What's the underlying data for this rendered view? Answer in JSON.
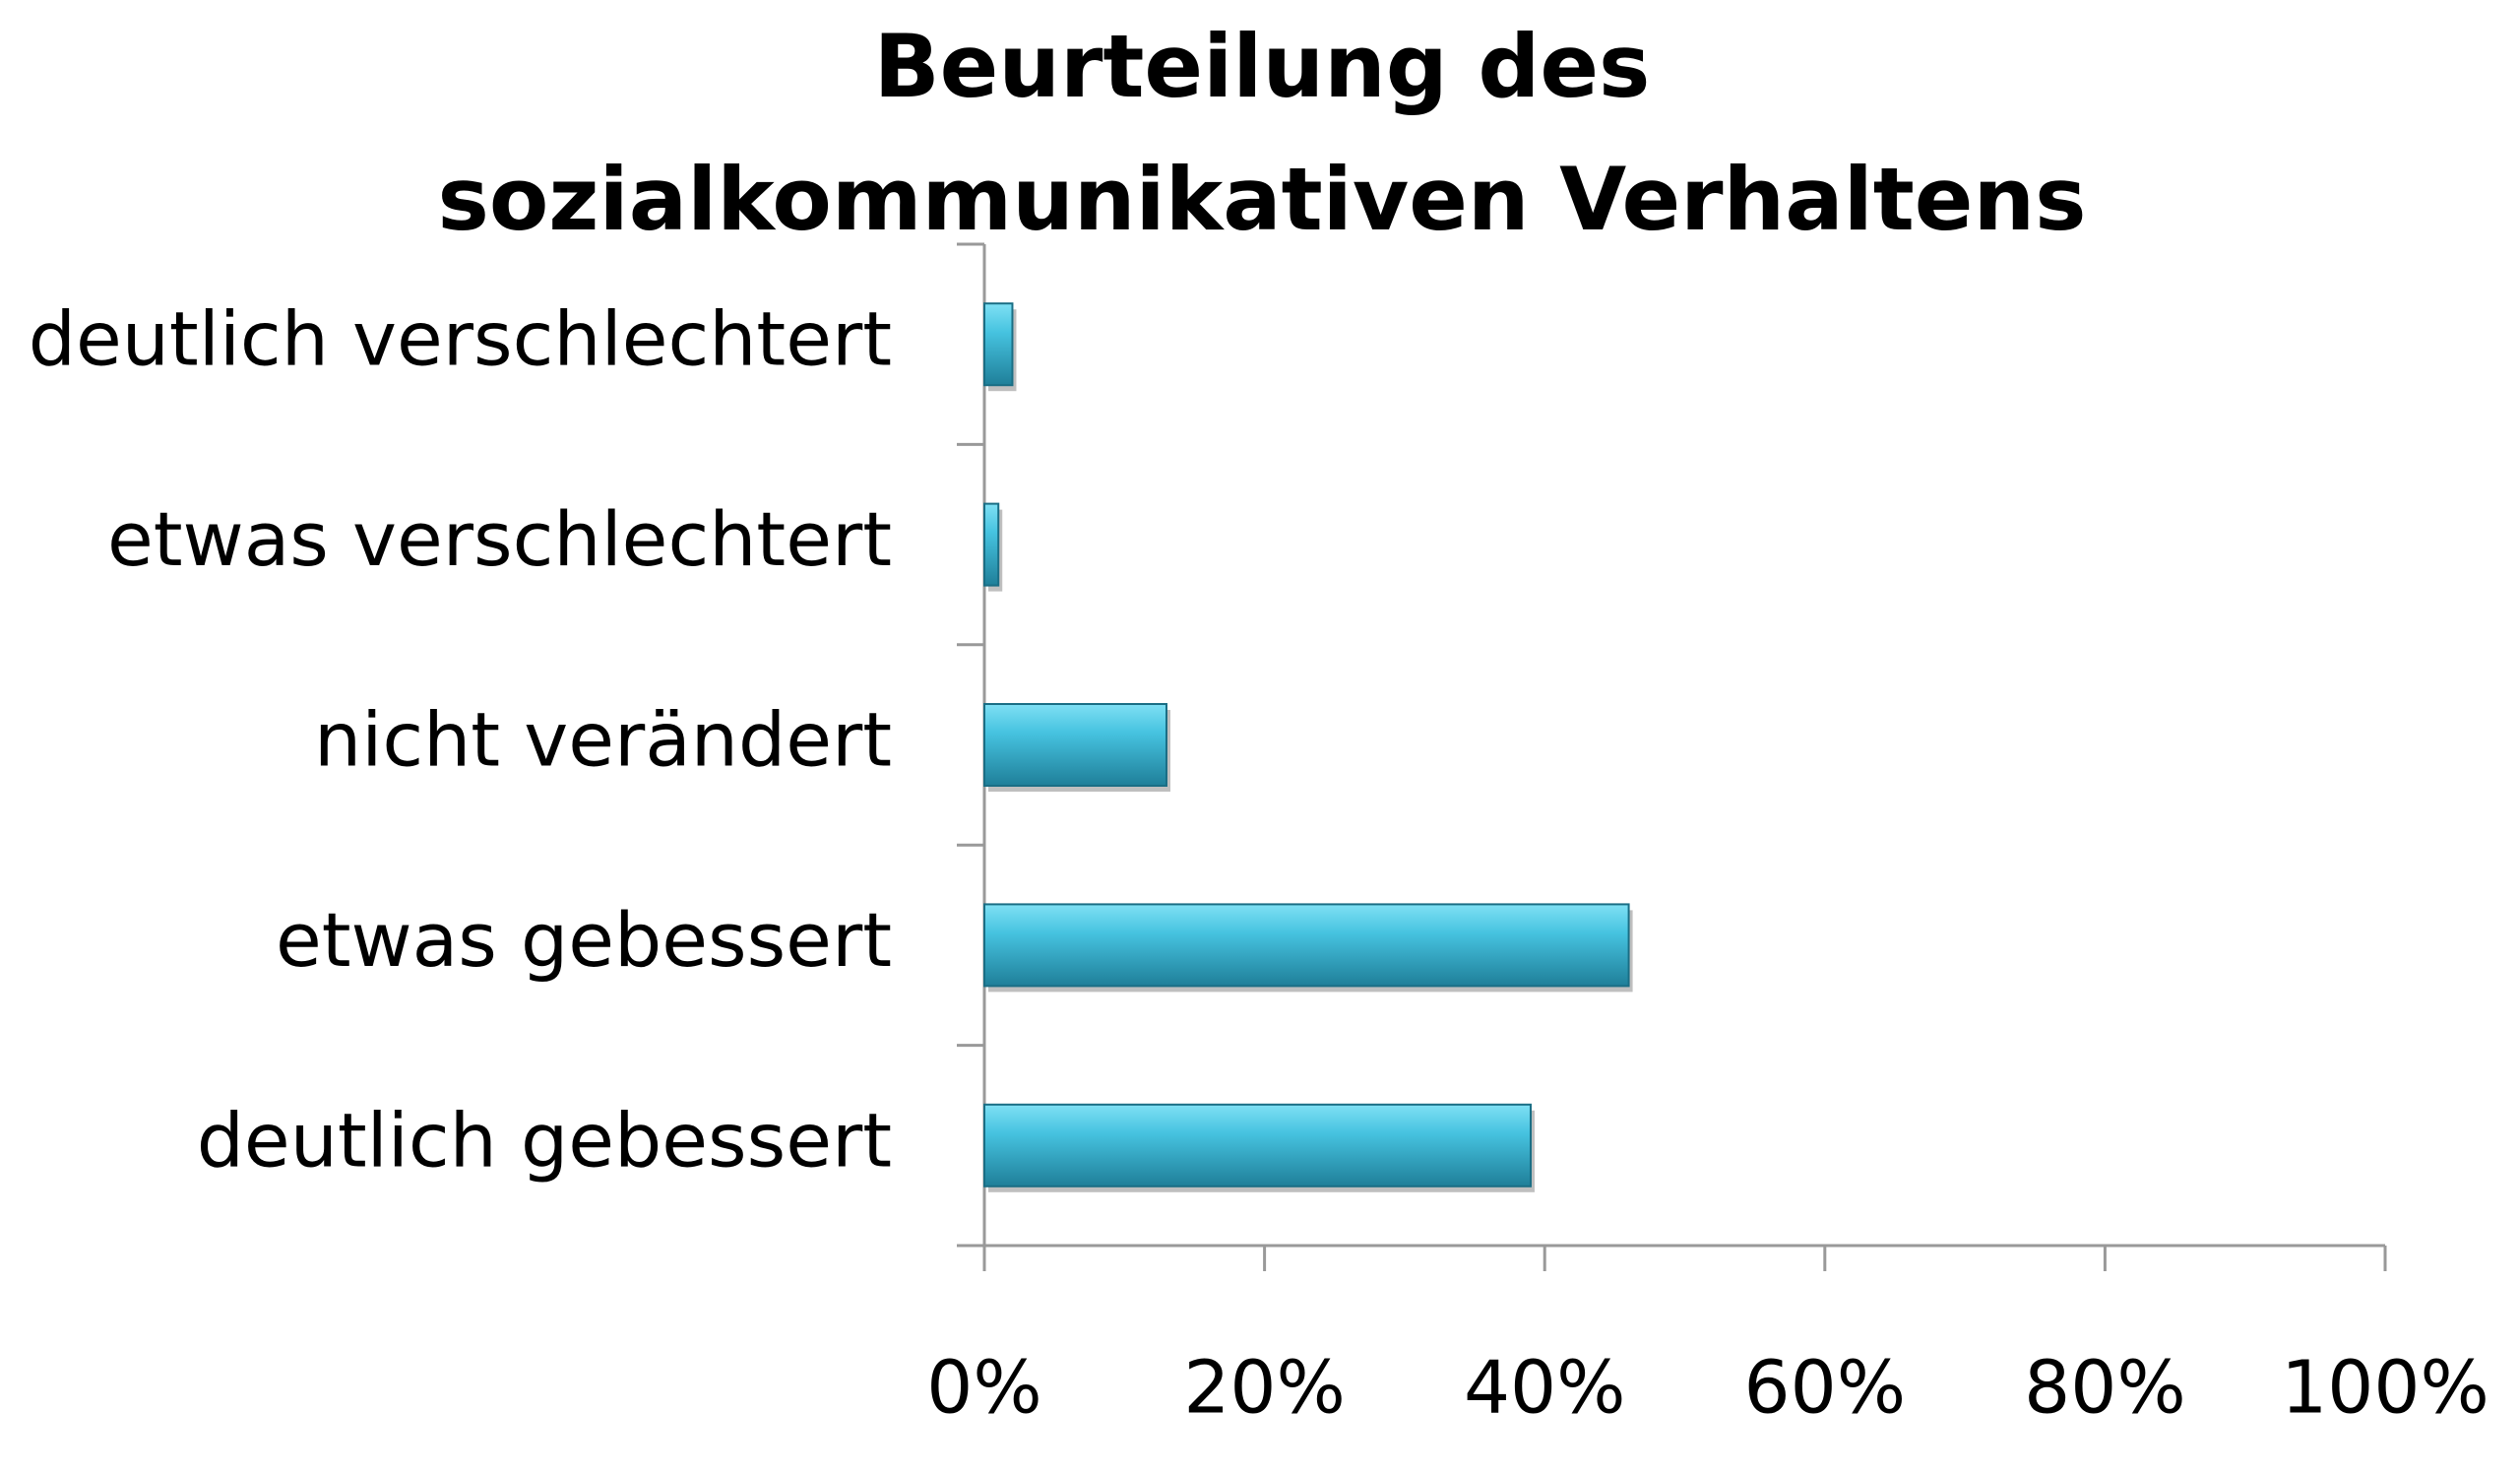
{
  "chart_data": {
    "type": "bar",
    "orientation": "horizontal",
    "title": "Beurteilung des sozialkommunikativen Verhaltens",
    "categories": [
      "deutlich verschlechtert",
      "etwas verschlechtert",
      "nicht verändert",
      "etwas gebessert",
      "deutlich gebessert"
    ],
    "values": [
      2,
      1,
      13,
      46,
      39
    ],
    "color": "#3fb3d0",
    "xlim": [
      0,
      100
    ],
    "xticks": [
      {
        "value": 0,
        "label": "0%"
      },
      {
        "value": 20,
        "label": "20%"
      },
      {
        "value": 40,
        "label": "40%"
      },
      {
        "value": 60,
        "label": "60%"
      },
      {
        "value": 80,
        "label": "80%"
      },
      {
        "value": 100,
        "label": "100%"
      }
    ],
    "grid": false
  }
}
